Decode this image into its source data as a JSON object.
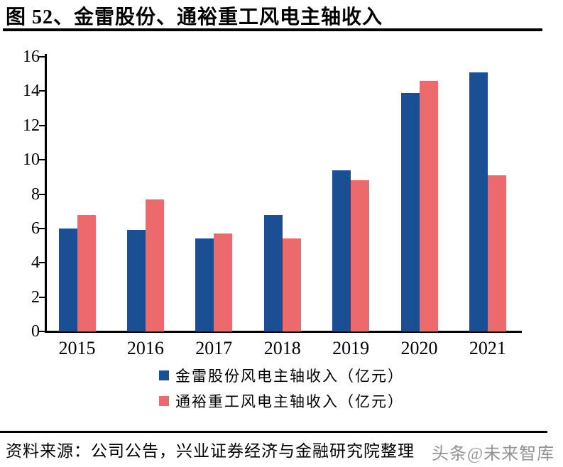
{
  "header": {
    "title": "图 52、金雷股份、通裕重工风电主轴收入"
  },
  "chart_data": {
    "type": "bar",
    "title": "图 52、金雷股份、通裕重工风电主轴收入",
    "categories": [
      "2015",
      "2016",
      "2017",
      "2018",
      "2019",
      "2020",
      "2021"
    ],
    "series": [
      {
        "name": "金雷股份风电主轴收入（亿元）",
        "color": "#1B4F94",
        "values": [
          6.0,
          5.9,
          5.4,
          6.8,
          9.4,
          13.9,
          15.1
        ]
      },
      {
        "name": "通裕重工风电主轴收入（亿元）",
        "color": "#EC6A6C",
        "values": [
          6.8,
          7.7,
          5.7,
          5.4,
          8.8,
          14.6,
          9.1
        ]
      }
    ],
    "xlabel": "",
    "ylabel": "",
    "ylim": [
      0,
      16
    ],
    "ytick_step": 2,
    "grid": false,
    "legend_position": "bottom"
  },
  "footer": {
    "source": "资料来源：公司公告，兴业证券经济与金融研究院整理",
    "watermark": "头条@未来智库"
  }
}
